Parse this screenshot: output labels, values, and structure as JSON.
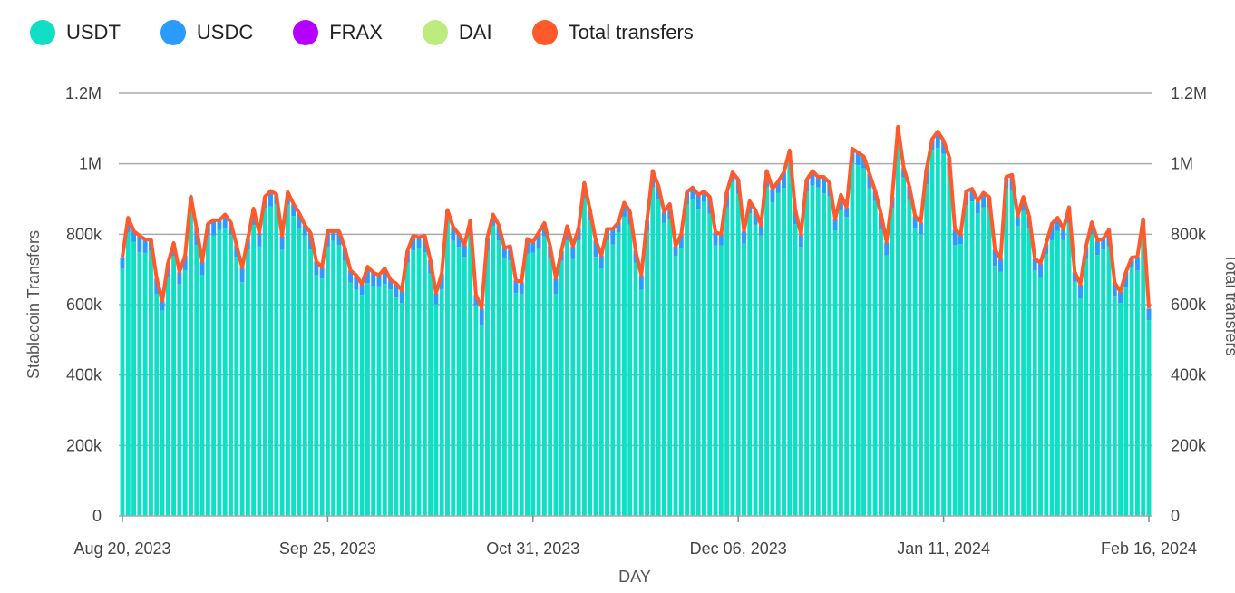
{
  "chart_data": {
    "type": "bar",
    "stacked": true,
    "unit": "thousands",
    "xlabel": "DAY",
    "ylabel": "Stablecoin Transfers",
    "ylabel_right": "Total transfers",
    "ylim": [
      0,
      1200
    ],
    "grid": true,
    "legend_position": "top-left",
    "y_ticks": [
      {
        "value": 0,
        "label": "0"
      },
      {
        "value": 200,
        "label": "200k"
      },
      {
        "value": 400,
        "label": "400k"
      },
      {
        "value": 600,
        "label": "600k"
      },
      {
        "value": 800,
        "label": "800k"
      },
      {
        "value": 1000,
        "label": "1M"
      },
      {
        "value": 1200,
        "label": "1.2M"
      }
    ],
    "x_ticks": [
      {
        "index": 0,
        "label": "Aug 20, 2023"
      },
      {
        "index": 36,
        "label": "Sep 25, 2023"
      },
      {
        "index": 72,
        "label": "Oct 31, 2023"
      },
      {
        "index": 108,
        "label": "Dec 06, 2023"
      },
      {
        "index": 144,
        "label": "Jan 11, 2024"
      },
      {
        "index": 180,
        "label": "Feb 16, 2024"
      }
    ],
    "x_start": "2023-08-20",
    "x_end": "2024-02-16",
    "series": [
      {
        "name": "USDT",
        "color": "#10dfc6",
        "kind": "bar",
        "values": "derived: total - USDC - FRAX - DAI"
      },
      {
        "name": "USDC",
        "color": "#2b9bff",
        "kind": "bar",
        "values": [
          32,
          40,
          28,
          45,
          36,
          30,
          42,
          26,
          38,
          34,
          32,
          40,
          28,
          45,
          36,
          30,
          42,
          26,
          38,
          34,
          32,
          40,
          28,
          45,
          36,
          30,
          42,
          26,
          38,
          34,
          32,
          40,
          28,
          45,
          36,
          30,
          42,
          26,
          38,
          34,
          32,
          40,
          28,
          45,
          36,
          30,
          42,
          26,
          38,
          34,
          32,
          40,
          28,
          45,
          36,
          30,
          42,
          26,
          38,
          34,
          32,
          40,
          28,
          45,
          36,
          30,
          42,
          26,
          38,
          34,
          32,
          40,
          28,
          45,
          36,
          30,
          42,
          26,
          38,
          34,
          32,
          40,
          28,
          45,
          36,
          30,
          42,
          26,
          38,
          34,
          32,
          40,
          28,
          45,
          36,
          30,
          42,
          26,
          38,
          34,
          32,
          40,
          28,
          45,
          36,
          30,
          42,
          26,
          38,
          34,
          32,
          40,
          28,
          45,
          36,
          30,
          42,
          26,
          38,
          34,
          32,
          40,
          28,
          45,
          36,
          30,
          42,
          26,
          38,
          34,
          32,
          40,
          28,
          45,
          36,
          30,
          42,
          26,
          38,
          34,
          32,
          40,
          28,
          45,
          36,
          30,
          42,
          26,
          38,
          34,
          32,
          40,
          28,
          45,
          36,
          30,
          42,
          26,
          38,
          34,
          32,
          40,
          28,
          45,
          36,
          30,
          42,
          26,
          38,
          34,
          32,
          40,
          28,
          45,
          36,
          30,
          42,
          26,
          38,
          34,
          32
        ]
      },
      {
        "name": "FRAX",
        "color": "#b400ff",
        "kind": "bar",
        "values": [
          1,
          1,
          1,
          1,
          1,
          1,
          1,
          1,
          1,
          1,
          1,
          1,
          1,
          1,
          1,
          1,
          1,
          1,
          1,
          1,
          1,
          1,
          1,
          1,
          1,
          1,
          1,
          1,
          1,
          1,
          1,
          1,
          1,
          1,
          1,
          1,
          1,
          1,
          1,
          1,
          1,
          1,
          1,
          1,
          1,
          1,
          1,
          1,
          1,
          1,
          1,
          1,
          1,
          1,
          1,
          1,
          1,
          1,
          1,
          1,
          1,
          1,
          1,
          1,
          1,
          1,
          1,
          1,
          1,
          1,
          1,
          1,
          1,
          1,
          1,
          1,
          1,
          1,
          1,
          1,
          1,
          1,
          1,
          1,
          1,
          1,
          1,
          1,
          1,
          1,
          1,
          1,
          1,
          1,
          1,
          1,
          1,
          1,
          1,
          1,
          1,
          1,
          1,
          1,
          1,
          1,
          1,
          1,
          1,
          1,
          1,
          1,
          1,
          1,
          1,
          1,
          1,
          1,
          1,
          1,
          1,
          1,
          1,
          1,
          1,
          1,
          1,
          1,
          1,
          1,
          1,
          1,
          1,
          1,
          1,
          1,
          1,
          1,
          1,
          1,
          1,
          1,
          1,
          1,
          1,
          1,
          1,
          1,
          1,
          1,
          1,
          1,
          1,
          1,
          1,
          1,
          1,
          1,
          1,
          1,
          1,
          1,
          1,
          1,
          1,
          1,
          1,
          1,
          1,
          1,
          1,
          1,
          1,
          1,
          1,
          1,
          1,
          1,
          1,
          1,
          1
        ]
      },
      {
        "name": "DAI",
        "color": "#bdec7e",
        "kind": "bar",
        "values": [
          1,
          1,
          1,
          1,
          1,
          1,
          1,
          1,
          1,
          1,
          1,
          1,
          1,
          1,
          1,
          1,
          1,
          1,
          1,
          1,
          1,
          1,
          1,
          1,
          1,
          1,
          1,
          1,
          1,
          1,
          1,
          1,
          1,
          1,
          1,
          1,
          1,
          1,
          1,
          1,
          1,
          1,
          1,
          1,
          1,
          1,
          1,
          1,
          1,
          1,
          1,
          1,
          1,
          1,
          1,
          1,
          1,
          1,
          1,
          1,
          1,
          1,
          1,
          1,
          1,
          1,
          1,
          1,
          1,
          1,
          1,
          1,
          1,
          1,
          1,
          1,
          1,
          1,
          1,
          1,
          1,
          1,
          1,
          1,
          1,
          1,
          1,
          1,
          1,
          1,
          1,
          1,
          1,
          1,
          1,
          1,
          1,
          1,
          1,
          1,
          1,
          1,
          1,
          1,
          1,
          1,
          1,
          1,
          1,
          1,
          1,
          1,
          1,
          1,
          1,
          1,
          1,
          1,
          1,
          1,
          1,
          1,
          1,
          1,
          1,
          1,
          1,
          1,
          1,
          1,
          1,
          1,
          1,
          1,
          1,
          1,
          1,
          1,
          1,
          1,
          1,
          1,
          1,
          1,
          1,
          1,
          1,
          1,
          1,
          1,
          1,
          1,
          1,
          1,
          1,
          1,
          1,
          1,
          1,
          1,
          1,
          1,
          1,
          1,
          1,
          1,
          1,
          1,
          1,
          1,
          1,
          1,
          1,
          1,
          1,
          1,
          1,
          1,
          1,
          1,
          1
        ]
      },
      {
        "name": "Total transfers",
        "color": "#ff5a2c",
        "kind": "line",
        "values": [
          736,
          847,
          809,
          796,
          785,
          785,
          675,
          611,
          718,
          775,
          693,
          740,
          907,
          817,
          723,
          830,
          840,
          840,
          856,
          834,
          770,
          706,
          787,
          873,
          804,
          907,
          923,
          914,
          796,
          920,
          886,
          860,
          826,
          804,
          723,
          706,
          809,
          809,
          809,
          761,
          697,
          684,
          658,
          708,
          691,
          684,
          703,
          671,
          660,
          641,
          753,
          796,
          791,
          796,
          727,
          633,
          688,
          869,
          821,
          800,
          770,
          839,
          628,
          590,
          791,
          856,
          826,
          761,
          766,
          669,
          665,
          787,
          778,
          805,
          832,
          766,
          675,
          753,
          823,
          766,
          817,
          946,
          869,
          783,
          740,
          815,
          815,
          834,
          890,
          864,
          753,
          684,
          839,
          980,
          937,
          864,
          886,
          766,
          800,
          920,
          933,
          912,
          922,
          906,
          806,
          800,
          920,
          976,
          955,
          809,
          894,
          869,
          826,
          980,
          929,
          950,
          976,
          1038,
          869,
          800,
          955,
          980,
          963,
          963,
          946,
          843,
          912,
          877,
          1043,
          1032,
          1021,
          972,
          924,
          860,
          778,
          907,
          1105,
          989,
          937,
          852,
          834,
          984,
          1070,
          1092,
          1066,
          1019,
          813,
          800,
          923,
          929,
          894,
          918,
          906,
          757,
          731,
          963,
          969,
          852,
          906,
          852,
          731,
          718,
          774,
          830,
          847,
          815,
          877,
          693,
          658,
          766,
          834,
          783,
          787,
          813,
          663,
          637,
          693,
          734,
          737,
          843,
          590
        ]
      }
    ]
  }
}
